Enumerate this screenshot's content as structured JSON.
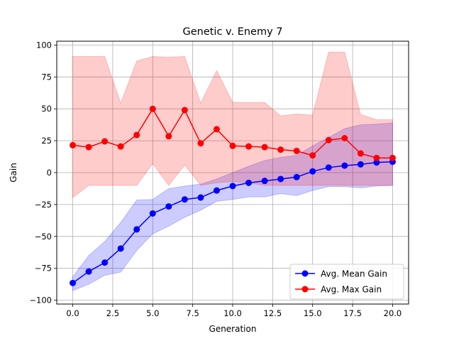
{
  "chart_data": {
    "type": "line",
    "title": "Genetic v. Enemy 7",
    "xlabel": "Generation",
    "ylabel": "Gain",
    "xlim": [
      -1.0,
      21.0
    ],
    "ylim": [
      -103,
      103
    ],
    "xticks": [
      0.0,
      2.5,
      5.0,
      7.5,
      10.0,
      12.5,
      15.0,
      17.5,
      20.0
    ],
    "xtick_labels": [
      "0.0",
      "2.5",
      "5.0",
      "7.5",
      "10.0",
      "12.5",
      "15.0",
      "17.5",
      "20.0"
    ],
    "yticks": [
      -100,
      -75,
      -50,
      -25,
      0,
      25,
      50,
      75,
      100
    ],
    "ytick_labels": [
      "−100",
      "−75",
      "−50",
      "−25",
      "0",
      "25",
      "50",
      "75",
      "100"
    ],
    "grid": true,
    "legend_position": "lower-right",
    "x": [
      0,
      1,
      2,
      3,
      4,
      5,
      6,
      7,
      8,
      9,
      10,
      11,
      12,
      13,
      14,
      15,
      16,
      17,
      18,
      19,
      20
    ],
    "series": [
      {
        "name": "Avg. Mean Gain",
        "color": "#0000ff",
        "band_color": "#0000ff",
        "values": [
          -86.5,
          -77.5,
          -70.5,
          -59.5,
          -44.5,
          -32,
          -26.5,
          -21,
          -19.5,
          -14,
          -10.5,
          -8,
          -6.5,
          -5,
          -3.5,
          1,
          4,
          5.5,
          6.5,
          8,
          8.5
        ],
        "band_lower": [
          -92.5,
          -87.5,
          -80.5,
          -78,
          -61,
          -48,
          -42,
          -35,
          -29.5,
          -22.5,
          -21,
          -19,
          -19,
          -16.5,
          -18,
          -14,
          -11,
          -11,
          -12,
          -10.5,
          -10
        ],
        "band_upper": [
          -81.5,
          -65,
          -54,
          -39,
          -21.5,
          -21,
          -12.5,
          -10.5,
          -9,
          -5,
          0,
          5,
          9.5,
          12,
          13.5,
          21,
          27.5,
          34.5,
          37.5,
          38,
          39
        ]
      },
      {
        "name": "Avg. Max Gain",
        "color": "#ff0000",
        "band_color": "#ff0000",
        "values": [
          21.5,
          20,
          24.5,
          20.5,
          29.5,
          50,
          28.5,
          49,
          23,
          34,
          21,
          20.5,
          20,
          18,
          17,
          13.5,
          25.5,
          27,
          15,
          11.5,
          11.5
        ],
        "band_lower": [
          -19.5,
          -10,
          -10,
          -10,
          -10,
          7,
          -10,
          6,
          -10,
          -8,
          -7,
          -8,
          -10,
          -10,
          -10,
          -10,
          -10,
          -10,
          -10,
          -10,
          -10
        ],
        "band_upper": [
          91,
          91,
          91,
          54.5,
          87.5,
          91,
          90.5,
          91,
          54.5,
          80,
          55,
          55,
          55,
          44.5,
          46,
          45,
          94.5,
          94.5,
          45.5,
          41.5,
          41.5
        ]
      }
    ]
  }
}
